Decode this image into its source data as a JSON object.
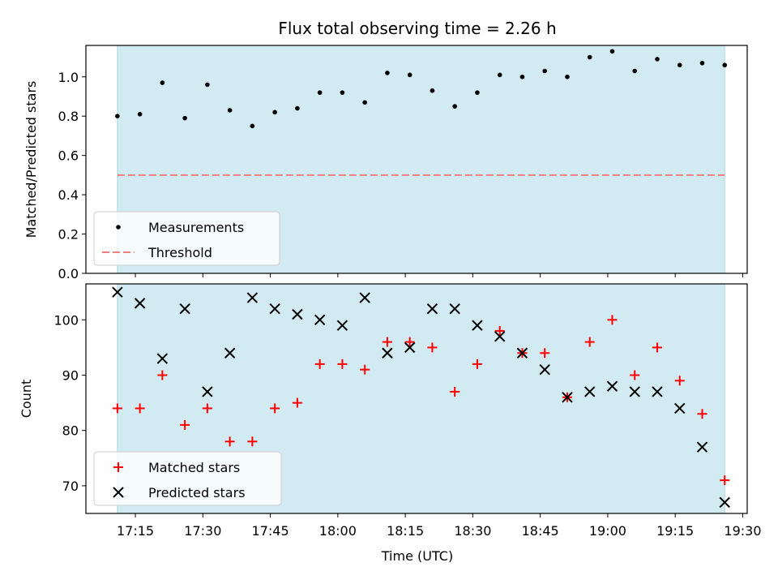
{
  "chart_data": {
    "type": "scatter",
    "title": "Flux total observing time = 2.26 h",
    "xlabel": "Time (UTC)",
    "x_unit": "UTC time (HH:MM)",
    "xlim": [
      "17:04",
      "19:31"
    ],
    "xticks": [
      "17:15",
      "17:30",
      "17:45",
      "18:00",
      "18:15",
      "18:30",
      "18:45",
      "19:00",
      "19:15",
      "19:30"
    ],
    "shaded_span": [
      "17:11",
      "19:26"
    ],
    "shade_color": "#add8e6",
    "times": [
      "17:11",
      "17:16",
      "17:21",
      "17:26",
      "17:31",
      "17:36",
      "17:41",
      "17:46",
      "17:51",
      "17:56",
      "18:01",
      "18:06",
      "18:11",
      "18:16",
      "18:21",
      "18:26",
      "18:31",
      "18:36",
      "18:41",
      "18:46",
      "18:51",
      "18:56",
      "19:01",
      "19:06",
      "19:11",
      "19:16",
      "19:21",
      "19:26"
    ],
    "panels": [
      {
        "ylabel": "Matched/Predicted stars",
        "ylim": [
          0,
          1.16
        ],
        "yticks": [
          "0.0",
          "0.2",
          "0.4",
          "0.6",
          "0.8",
          "1.0"
        ],
        "legend_position": "lower-left",
        "series": [
          {
            "name": "Measurements",
            "marker": "dot",
            "color": "#000000",
            "values": [
              0.8,
              0.81,
              0.97,
              0.79,
              0.96,
              0.83,
              0.75,
              0.82,
              0.84,
              0.92,
              0.92,
              0.87,
              1.02,
              1.01,
              0.93,
              0.85,
              0.92,
              1.01,
              1.0,
              1.03,
              1.0,
              1.1,
              1.13,
              1.03,
              1.09,
              1.06,
              1.07,
              1.06
            ]
          },
          {
            "name": "Threshold",
            "marker": "dashed-line",
            "color": "#f08080",
            "value": 0.5
          }
        ]
      },
      {
        "ylabel": "Count",
        "ylim": [
          65,
          106.5
        ],
        "yticks": [
          "70",
          "80",
          "90",
          "100"
        ],
        "legend_position": "lower-left",
        "series": [
          {
            "name": "Matched stars",
            "marker": "plus",
            "color": "#ff0000",
            "values": [
              84,
              84,
              90,
              81,
              84,
              78,
              78,
              84,
              85,
              92,
              92,
              91,
              96,
              96,
              95,
              87,
              92,
              98,
              94,
              94,
              86,
              96,
              100,
              90,
              95,
              89,
              83,
              71
            ]
          },
          {
            "name": "Predicted stars",
            "marker": "x",
            "color": "#000000",
            "values": [
              105,
              103,
              93,
              102,
              87,
              94,
              104,
              102,
              101,
              100,
              99,
              104,
              94,
              95,
              102,
              102,
              99,
              97,
              94,
              91,
              86,
              87,
              88,
              87,
              87,
              84,
              77,
              67
            ]
          }
        ]
      }
    ]
  }
}
